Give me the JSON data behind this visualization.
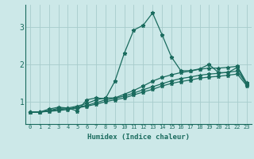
{
  "xlabel": "Humidex (Indice chaleur)",
  "xlim": [
    -0.5,
    23.5
  ],
  "ylim": [
    0.4,
    3.6
  ],
  "yticks": [
    1,
    2,
    3
  ],
  "xticks": [
    0,
    1,
    2,
    3,
    4,
    5,
    6,
    7,
    8,
    9,
    10,
    11,
    12,
    13,
    14,
    15,
    16,
    17,
    18,
    19,
    20,
    21,
    22,
    23
  ],
  "background_color": "#cce8e8",
  "grid_color": "#a8cccc",
  "line_color": "#1a6b5e",
  "line1_x": [
    0,
    1,
    2,
    3,
    4,
    5,
    6,
    7,
    8,
    9,
    10,
    11,
    12,
    13,
    14,
    15,
    16,
    17,
    18,
    19,
    20,
    21,
    22,
    23
  ],
  "line1_y": [
    0.72,
    0.72,
    0.8,
    0.85,
    0.83,
    0.75,
    1.05,
    1.1,
    1.08,
    1.55,
    2.3,
    2.92,
    3.05,
    3.38,
    2.8,
    2.2,
    1.83,
    1.83,
    1.88,
    2.0,
    1.78,
    1.78,
    1.92,
    1.45
  ],
  "line2_x": [
    0,
    1,
    2,
    3,
    4,
    5,
    6,
    7,
    8,
    9,
    10,
    11,
    12,
    13,
    14,
    15,
    16,
    17,
    18,
    19,
    20,
    21,
    22,
    23
  ],
  "line2_y": [
    0.72,
    0.72,
    0.76,
    0.82,
    0.83,
    0.88,
    0.95,
    1.05,
    1.1,
    1.1,
    1.2,
    1.3,
    1.42,
    1.55,
    1.65,
    1.72,
    1.78,
    1.82,
    1.87,
    1.9,
    1.9,
    1.92,
    1.95,
    1.5
  ],
  "line3_x": [
    0,
    1,
    2,
    3,
    4,
    5,
    6,
    7,
    8,
    9,
    10,
    11,
    12,
    13,
    14,
    15,
    16,
    17,
    18,
    19,
    20,
    21,
    22,
    23
  ],
  "line3_y": [
    0.72,
    0.72,
    0.75,
    0.79,
    0.81,
    0.85,
    0.9,
    0.97,
    1.05,
    1.09,
    1.15,
    1.23,
    1.32,
    1.4,
    1.48,
    1.56,
    1.62,
    1.66,
    1.71,
    1.74,
    1.76,
    1.79,
    1.82,
    1.47
  ],
  "line4_x": [
    0,
    1,
    2,
    3,
    4,
    5,
    6,
    7,
    8,
    9,
    10,
    11,
    12,
    13,
    14,
    15,
    16,
    17,
    18,
    19,
    20,
    21,
    22,
    23
  ],
  "line4_y": [
    0.72,
    0.72,
    0.74,
    0.76,
    0.79,
    0.83,
    0.88,
    0.93,
    1.0,
    1.05,
    1.1,
    1.18,
    1.26,
    1.33,
    1.42,
    1.49,
    1.54,
    1.58,
    1.63,
    1.66,
    1.68,
    1.71,
    1.74,
    1.43
  ]
}
